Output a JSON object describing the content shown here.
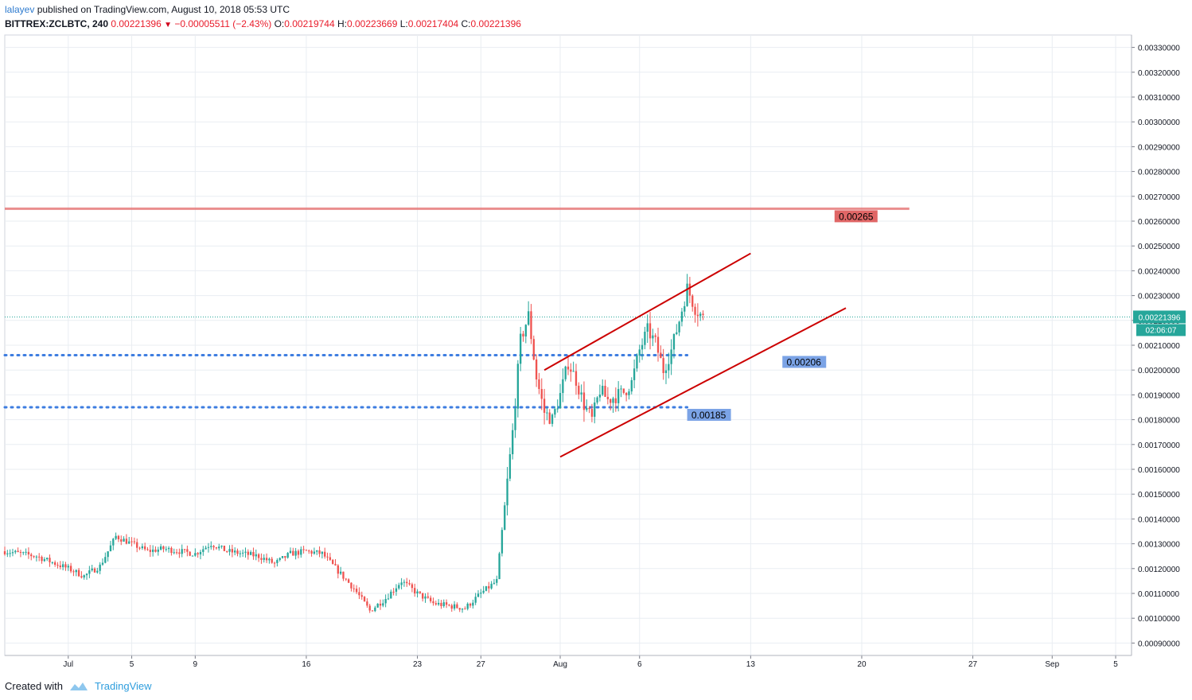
{
  "header": {
    "publisher": "lalayev",
    "published_text": "published on TradingView.com, August 10, 2018 05:53 UTC",
    "symbol": "BITTREX:ZCLBTC, 240",
    "last": "0.00221396",
    "change": "−0.00005511 (−2.43%)",
    "o_label": "O:",
    "o_value": "0.00219744",
    "h_label": "H:",
    "h_value": "0.00223669",
    "l_label": "L:",
    "l_value": "0.00217404",
    "c_label": "C:",
    "c_value": "0.00221396"
  },
  "footer": {
    "created_with": "Created with",
    "brand": "TradingView"
  },
  "colors": {
    "up": "#26a69a",
    "down": "#ef5350",
    "resistance": "#e57373",
    "channel": "#cc0000",
    "support": "#3d7de0",
    "current": "#26a69a",
    "grid": "#e9edf2"
  },
  "chart_data": {
    "type": "candlestick",
    "y_axis": {
      "min": 0.00085,
      "max": 0.00335,
      "ticks": [
        "0.00090000",
        "0.00100000",
        "0.00110000",
        "0.00120000",
        "0.00130000",
        "0.00140000",
        "0.00150000",
        "0.00160000",
        "0.00170000",
        "0.00180000",
        "0.00190000",
        "0.00200000",
        "0.00210000",
        "0.00220000",
        "0.00230000",
        "0.00240000",
        "0.00250000",
        "0.00260000",
        "0.00270000",
        "0.00280000",
        "0.00290000",
        "0.00300000",
        "0.00310000",
        "0.00320000",
        "0.00330000"
      ]
    },
    "x_axis": {
      "start": "2018-06-27",
      "end": "2018-09-06",
      "ticks": [
        {
          "date": "2018-07-01",
          "label": "Jul"
        },
        {
          "date": "2018-07-05",
          "label": "5"
        },
        {
          "date": "2018-07-09",
          "label": "9"
        },
        {
          "date": "2018-07-16",
          "label": "16"
        },
        {
          "date": "2018-07-23",
          "label": "23"
        },
        {
          "date": "2018-07-27",
          "label": "27"
        },
        {
          "date": "2018-08-01",
          "label": "Aug"
        },
        {
          "date": "2018-08-06",
          "label": "6"
        },
        {
          "date": "2018-08-13",
          "label": "13"
        },
        {
          "date": "2018-08-20",
          "label": "20"
        },
        {
          "date": "2018-08-27",
          "label": "27"
        },
        {
          "date": "2018-09-01",
          "label": "Sep"
        },
        {
          "date": "2018-09-05",
          "label": "5"
        }
      ]
    },
    "price_path": [
      [
        "2018-06-27",
        0.00127
      ],
      [
        "2018-06-29",
        0.00125
      ],
      [
        "2018-07-01",
        0.0012
      ],
      [
        "2018-07-02",
        0.00117
      ],
      [
        "2018-07-03",
        0.00121
      ],
      [
        "2018-07-04",
        0.00133
      ],
      [
        "2018-07-05",
        0.0013
      ],
      [
        "2018-07-06",
        0.00127
      ],
      [
        "2018-07-07",
        0.00128
      ],
      [
        "2018-07-09",
        0.00126
      ],
      [
        "2018-07-10",
        0.0013
      ],
      [
        "2018-07-11",
        0.00127
      ],
      [
        "2018-07-13",
        0.00125
      ],
      [
        "2018-07-14",
        0.00122
      ],
      [
        "2018-07-15",
        0.00126
      ],
      [
        "2018-07-16",
        0.00127
      ],
      [
        "2018-07-17",
        0.00126
      ],
      [
        "2018-07-18",
        0.00119
      ],
      [
        "2018-07-19",
        0.00112
      ],
      [
        "2018-07-20",
        0.00103
      ],
      [
        "2018-07-21",
        0.00108
      ],
      [
        "2018-07-22",
        0.00115
      ],
      [
        "2018-07-23",
        0.0011
      ],
      [
        "2018-07-24",
        0.00106
      ],
      [
        "2018-07-25",
        0.00105
      ],
      [
        "2018-07-26",
        0.00104
      ],
      [
        "2018-07-27",
        0.0011
      ],
      [
        "2018-07-28",
        0.00115
      ],
      [
        "2018-07-28T12:00",
        0.00145
      ],
      [
        "2018-07-29",
        0.00175
      ],
      [
        "2018-07-29T12:00",
        0.00212
      ],
      [
        "2018-07-30",
        0.00222
      ],
      [
        "2018-07-30T12:00",
        0.00197
      ],
      [
        "2018-07-31",
        0.00183
      ],
      [
        "2018-07-31T12:00",
        0.0018
      ],
      [
        "2018-08-01",
        0.0019
      ],
      [
        "2018-08-01T12:00",
        0.00203
      ],
      [
        "2018-08-02",
        0.00196
      ],
      [
        "2018-08-02T12:00",
        0.00186
      ],
      [
        "2018-08-03",
        0.0018
      ],
      [
        "2018-08-03T12:00",
        0.00192
      ],
      [
        "2018-08-04",
        0.00188
      ],
      [
        "2018-08-05",
        0.00191
      ],
      [
        "2018-08-05T12:00",
        0.00195
      ],
      [
        "2018-08-06",
        0.00208
      ],
      [
        "2018-08-06T12:00",
        0.00216
      ],
      [
        "2018-08-07",
        0.00211
      ],
      [
        "2018-08-07T12:00",
        0.002
      ],
      [
        "2018-08-08",
        0.00208
      ],
      [
        "2018-08-08T12:00",
        0.0022
      ],
      [
        "2018-08-09",
        0.00233
      ],
      [
        "2018-08-09T12:00",
        0.00225
      ],
      [
        "2018-08-10",
        0.00221
      ]
    ],
    "candle_interval_hours": 4,
    "horizontal_lines": [
      {
        "kind": "resistance",
        "price": 0.00265,
        "label": "0.00265",
        "from": "2018-06-27",
        "to": "2018-08-23"
      },
      {
        "kind": "support",
        "price": 0.00206,
        "label": "0.00206",
        "from": "2018-06-27",
        "to": "2018-08-09"
      },
      {
        "kind": "support",
        "price": 0.00185,
        "label": "0.00185",
        "from": "2018-06-27",
        "to": "2018-08-09"
      }
    ],
    "trendlines": [
      {
        "from": [
          "2018-07-31",
          0.002
        ],
        "to": [
          "2018-08-13",
          0.00247
        ]
      },
      {
        "from": [
          "2018-08-01",
          0.00165
        ],
        "to": [
          "2018-08-19",
          0.00225
        ]
      }
    ],
    "current_price": {
      "value": 0.00221396,
      "label": "0.00221396",
      "countdown": "02:06:07"
    }
  }
}
